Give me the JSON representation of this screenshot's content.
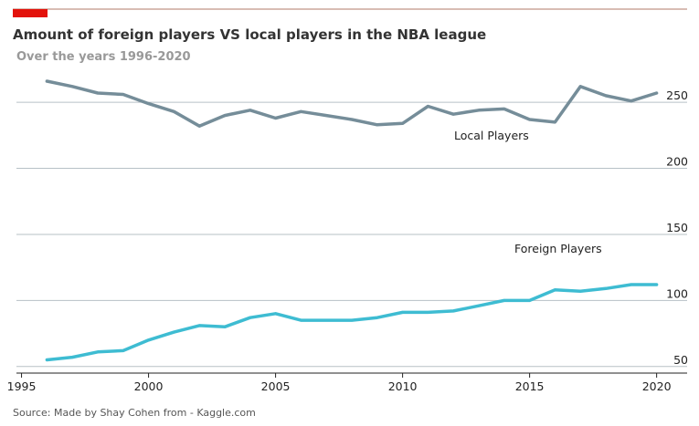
{
  "chart_data": {
    "type": "line",
    "title": "Amount of foreign players VS local players in the  NBA league",
    "subtitle": "Over the years 1996-2020",
    "source": "Source: Made by Shay Cohen from - Kaggle.com",
    "xlabel": "",
    "ylabel": "",
    "xlim": [
      1994.8,
      2021.2
    ],
    "ylim": [
      45,
      295
    ],
    "x_ticks": [
      1995,
      2000,
      2005,
      2010,
      2015,
      2020
    ],
    "y_ticks": [
      50,
      100,
      150,
      200,
      250
    ],
    "grid": "horizontal",
    "accent_color": "#e3120b",
    "x": [
      1996,
      1997,
      1998,
      1999,
      2000,
      2001,
      2002,
      2003,
      2004,
      2005,
      2006,
      2007,
      2008,
      2009,
      2010,
      2011,
      2012,
      2013,
      2014,
      2015,
      2016,
      2017,
      2018,
      2019,
      2020
    ],
    "series": [
      {
        "name": "Local Players",
        "color": "#758d99",
        "values": [
          266,
          262,
          257,
          256,
          249,
          243,
          232,
          240,
          244,
          238,
          243,
          240,
          237,
          233,
          234,
          247,
          241,
          244,
          245,
          237,
          235,
          262,
          255,
          251,
          257
        ]
      },
      {
        "name": "Foreign Players",
        "color": "#3ebcd2",
        "values": [
          55,
          57,
          61,
          62,
          70,
          76,
          81,
          80,
          87,
          90,
          85,
          85,
          85,
          87,
          91,
          91,
          92,
          96,
          100,
          100,
          108,
          107,
          109,
          112,
          112
        ]
      }
    ]
  }
}
